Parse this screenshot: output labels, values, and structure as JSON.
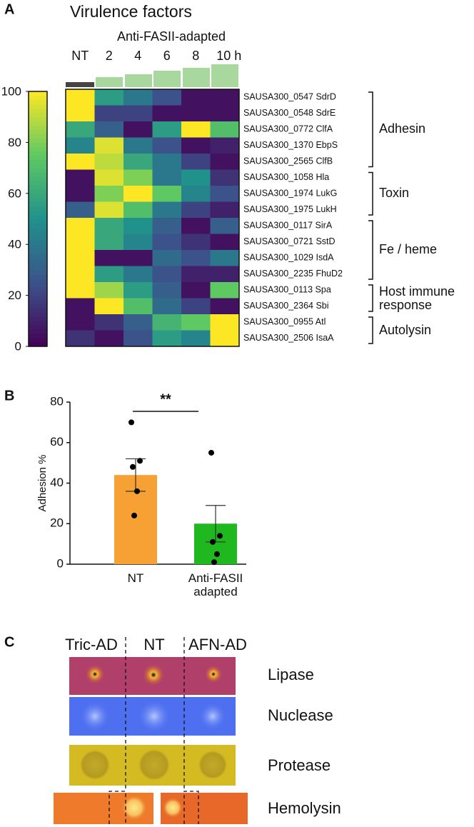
{
  "chart_data": [
    {
      "type": "heatmap",
      "label": "A",
      "title": "Virulence factors",
      "subtitle": "Anti-FASII-adapted",
      "columns": [
        "NT",
        "2",
        "4",
        "6",
        "8",
        "10 h"
      ],
      "rows": [
        "SAUSA300_0547 SdrD",
        "SAUSA300_0548 SdrE",
        "SAUSA300_0772 ClfA",
        "SAUSA300_1370 EbpS",
        "SAUSA300_2565 ClfB",
        "SAUSA300_1058 Hla",
        "SAUSA300_1974 LukG",
        "SAUSA300_1975 LukH",
        "SAUSA300_0117 SirA",
        "SAUSA300_0721 SstD",
        "SAUSA300_1029 IsdA",
        "SAUSA300_2235 FhuD2",
        "SAUSA300_0113 Spa",
        "SAUSA300_2364 Sbi",
        "SAUSA300_0955 Atl",
        "SAUSA300_2506 IsaA"
      ],
      "values": [
        [
          100,
          55,
          40,
          25,
          5,
          5
        ],
        [
          100,
          20,
          20,
          5,
          5,
          5
        ],
        [
          60,
          30,
          5,
          55,
          100,
          70
        ],
        [
          45,
          95,
          40,
          25,
          5,
          10
        ],
        [
          100,
          90,
          60,
          40,
          20,
          5
        ],
        [
          5,
          95,
          80,
          40,
          50,
          15
        ],
        [
          5,
          80,
          100,
          75,
          45,
          25
        ],
        [
          30,
          95,
          70,
          40,
          20,
          10
        ],
        [
          100,
          60,
          50,
          30,
          5,
          30
        ],
        [
          100,
          60,
          45,
          25,
          15,
          5
        ],
        [
          100,
          5,
          5,
          35,
          25,
          40
        ],
        [
          100,
          55,
          40,
          25,
          10,
          10
        ],
        [
          100,
          85,
          55,
          30,
          5,
          75
        ],
        [
          5,
          100,
          70,
          35,
          20,
          5
        ],
        [
          5,
          15,
          30,
          65,
          75,
          100
        ],
        [
          15,
          5,
          25,
          55,
          45,
          100
        ]
      ],
      "groups": [
        {
          "label": "Adhesin",
          "size": 5
        },
        {
          "label": "Toxin",
          "size": 3
        },
        {
          "label": "Fe / heme",
          "size": 4
        },
        {
          "label": "Host immune response",
          "size": 2
        },
        {
          "label": "Autolysin",
          "size": 2
        }
      ],
      "colormap": "viridis",
      "clim": [
        0,
        100
      ],
      "cticks": [
        0,
        20,
        40,
        60,
        80,
        100
      ]
    },
    {
      "type": "bar",
      "label": "B",
      "ylabel": "Adhesion %",
      "categories": [
        "NT",
        "Anti-FASII adapted"
      ],
      "values": [
        44,
        20
      ],
      "errors": [
        8,
        9
      ],
      "colors": [
        "#f7a033",
        "#1fb81f"
      ],
      "points": [
        [
          70,
          51,
          48,
          36,
          24
        ],
        [
          55,
          14,
          11,
          5,
          1
        ]
      ],
      "annotation": "**",
      "ylim": [
        0,
        80
      ],
      "yticks": [
        0,
        20,
        40,
        60,
        80
      ]
    }
  ],
  "panel_c": {
    "label": "C",
    "columns": [
      "Tric-AD",
      "NT",
      "AFN-AD"
    ],
    "rows": [
      "Lipase",
      "Nuclease",
      "Protease",
      "Hemolysin"
    ]
  }
}
